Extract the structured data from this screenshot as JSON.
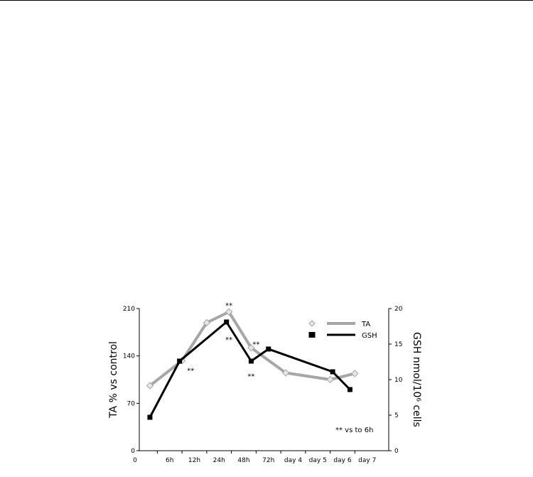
{
  "chart_data": {
    "type": "line",
    "x_categories": [
      "6h",
      "12h",
      "24h",
      "48h",
      "72h",
      "day 4",
      "day 5",
      "day 6",
      "day 7"
    ],
    "x_origin_label": "0",
    "ylabel_left": "TA % vs control",
    "ylabel_right": "GSH nmol/10⁶ cells",
    "y_left": {
      "min": 0,
      "max": 210,
      "ticks": [
        "0",
        "70",
        "140",
        "210"
      ]
    },
    "y_right": {
      "min": 0,
      "max": 20,
      "ticks": [
        "0",
        "5",
        "10",
        "15",
        "20"
      ]
    },
    "legend_position": "top-right",
    "series": [
      {
        "name": "TA",
        "axis": "left",
        "color": "#a6a6a6",
        "marker": "diamond",
        "points": [
          {
            "x": 0.2,
            "y": 96
          },
          {
            "x": 1.5,
            "y": 133
          },
          {
            "x": 2.5,
            "y": 189
          },
          {
            "x": 3.4,
            "y": 205
          },
          {
            "x": 4.3,
            "y": 152
          },
          {
            "x": 5.7,
            "y": 115
          },
          {
            "x": 7.5,
            "y": 105
          },
          {
            "x": 8.5,
            "y": 114
          }
        ]
      },
      {
        "name": "GSH",
        "axis": "right",
        "color": "#000000",
        "marker": "square",
        "points": [
          {
            "x": 0.2,
            "y": 4.7
          },
          {
            "x": 1.4,
            "y": 12.6
          },
          {
            "x": 3.3,
            "y": 18.1
          },
          {
            "x": 4.3,
            "y": 12.6
          },
          {
            "x": 5.0,
            "y": 14.3
          },
          {
            "x": 7.6,
            "y": 11.1
          },
          {
            "x": 8.3,
            "y": 8.6
          }
        ]
      }
    ],
    "significance_marks": [
      {
        "text": "**",
        "x": 3.4,
        "y_left": 215
      },
      {
        "text": "**",
        "x": 3.4,
        "y_left": 165
      },
      {
        "text": "**",
        "x": 1.85,
        "y_left": 119
      },
      {
        "text": "**",
        "x": 4.5,
        "y_left": 158
      },
      {
        "text": "**",
        "x": 4.3,
        "y_left": 111
      }
    ],
    "annotation": "** vs to 6h"
  }
}
